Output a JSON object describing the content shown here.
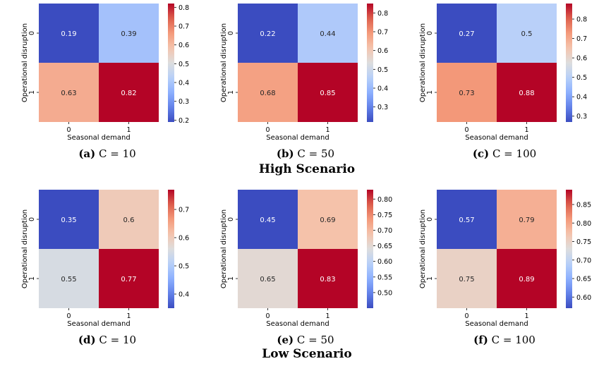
{
  "chart_data": [
    {
      "type": "heatmap",
      "panel": "a",
      "label": "(a)",
      "caption": "C = 10",
      "scenario": "High Scenario",
      "xlabel": "Seasonal demand",
      "ylabel": "Operational disruption",
      "x_categories": [
        "0",
        "1"
      ],
      "y_categories": [
        "0",
        "1"
      ],
      "values": [
        [
          0.19,
          0.39
        ],
        [
          0.63,
          0.82
        ]
      ],
      "cell_labels": [
        [
          "0.19",
          "0.39"
        ],
        [
          "0.63",
          "0.82"
        ]
      ],
      "vmin": 0.19,
      "vmax": 0.82,
      "colorbar_ticks": [
        0.2,
        0.3,
        0.4,
        0.5,
        0.6,
        0.7,
        0.8
      ],
      "colorbar_labels": [
        "0.2",
        "0.3",
        "0.4",
        "0.5",
        "0.6",
        "0.7",
        "0.8"
      ],
      "colormap": "coolwarm"
    },
    {
      "type": "heatmap",
      "panel": "b",
      "label": "(b)",
      "caption": "C = 50",
      "scenario": "High Scenario",
      "xlabel": "Seasonal demand",
      "ylabel": "Operational disruption",
      "x_categories": [
        "0",
        "1"
      ],
      "y_categories": [
        "0",
        "1"
      ],
      "values": [
        [
          0.22,
          0.44
        ],
        [
          0.68,
          0.85
        ]
      ],
      "cell_labels": [
        [
          "0.22",
          "0.44"
        ],
        [
          "0.68",
          "0.85"
        ]
      ],
      "vmin": 0.22,
      "vmax": 0.85,
      "colorbar_ticks": [
        0.3,
        0.4,
        0.5,
        0.6,
        0.7,
        0.8
      ],
      "colorbar_labels": [
        "0.3",
        "0.4",
        "0.5",
        "0.6",
        "0.7",
        "0.8"
      ],
      "colormap": "coolwarm"
    },
    {
      "type": "heatmap",
      "panel": "c",
      "label": "(c)",
      "caption": "C = 100",
      "scenario": "High Scenario",
      "xlabel": "Seasonal demand",
      "ylabel": "Operational disruption",
      "x_categories": [
        "0",
        "1"
      ],
      "y_categories": [
        "0",
        "1"
      ],
      "values": [
        [
          0.27,
          0.5
        ],
        [
          0.73,
          0.88
        ]
      ],
      "cell_labels": [
        [
          "0.27",
          "0.5"
        ],
        [
          "0.73",
          "0.88"
        ]
      ],
      "vmin": 0.27,
      "vmax": 0.88,
      "colorbar_ticks": [
        0.3,
        0.4,
        0.5,
        0.6,
        0.7,
        0.8
      ],
      "colorbar_labels": [
        "0.3",
        "0.4",
        "0.5",
        "0.6",
        "0.7",
        "0.8"
      ],
      "colormap": "coolwarm"
    },
    {
      "type": "heatmap",
      "panel": "d",
      "label": "(d)",
      "caption": "C = 10",
      "scenario": "Low Scenario",
      "xlabel": "Seasonal demand",
      "ylabel": "Operational disruption",
      "x_categories": [
        "0",
        "1"
      ],
      "y_categories": [
        "0",
        "1"
      ],
      "values": [
        [
          0.35,
          0.6
        ],
        [
          0.55,
          0.77
        ]
      ],
      "cell_labels": [
        [
          "0.35",
          "0.6"
        ],
        [
          "0.55",
          "0.77"
        ]
      ],
      "vmin": 0.35,
      "vmax": 0.77,
      "colorbar_ticks": [
        0.4,
        0.5,
        0.6,
        0.7
      ],
      "colorbar_labels": [
        "0.4",
        "0.5",
        "0.6",
        "0.7"
      ],
      "colormap": "coolwarm"
    },
    {
      "type": "heatmap",
      "panel": "e",
      "label": "(e)",
      "caption": "C = 50",
      "scenario": "Low Scenario",
      "xlabel": "Seasonal demand",
      "ylabel": "Operational disruption",
      "x_categories": [
        "0",
        "1"
      ],
      "y_categories": [
        "0",
        "1"
      ],
      "values": [
        [
          0.45,
          0.69
        ],
        [
          0.65,
          0.83
        ]
      ],
      "cell_labels": [
        [
          "0.45",
          "0.69"
        ],
        [
          "0.65",
          "0.83"
        ]
      ],
      "vmin": 0.45,
      "vmax": 0.83,
      "colorbar_ticks": [
        0.5,
        0.55,
        0.6,
        0.65,
        0.7,
        0.75,
        0.8
      ],
      "colorbar_labels": [
        "0.50",
        "0.55",
        "0.60",
        "0.65",
        "0.70",
        "0.75",
        "0.80"
      ],
      "colormap": "coolwarm"
    },
    {
      "type": "heatmap",
      "panel": "f",
      "label": "(f)",
      "caption": "C = 100",
      "scenario": "Low Scenario",
      "xlabel": "Seasonal demand",
      "ylabel": "Operational disruption",
      "x_categories": [
        "0",
        "1"
      ],
      "y_categories": [
        "0",
        "1"
      ],
      "values": [
        [
          0.57,
          0.79
        ],
        [
          0.75,
          0.89
        ]
      ],
      "cell_labels": [
        [
          "0.57",
          "0.79"
        ],
        [
          "0.75",
          "0.89"
        ]
      ],
      "vmin": 0.57,
      "vmax": 0.89,
      "colorbar_ticks": [
        0.6,
        0.65,
        0.7,
        0.75,
        0.8,
        0.85
      ],
      "colorbar_labels": [
        "0.60",
        "0.65",
        "0.70",
        "0.75",
        "0.80",
        "0.85"
      ],
      "colormap": "coolwarm"
    }
  ],
  "scenarios": {
    "high": "High Scenario",
    "low": "Low Scenario"
  }
}
